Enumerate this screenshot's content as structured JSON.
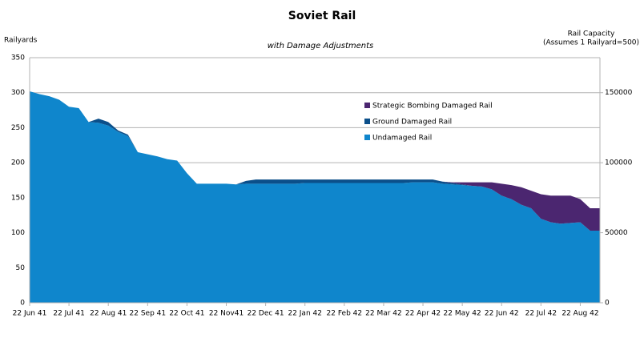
{
  "chart_data": {
    "type": "stacked_area",
    "title": "Soviet Rail",
    "subtitle": "with Damage Adjustments",
    "ylabel": "Railyards",
    "y2label": [
      "Rail Capacity",
      "(Assumes 1 Railyard=500)"
    ],
    "categories": [
      "22 Jun 41",
      null,
      null,
      null,
      "22 Jul 41",
      null,
      null,
      null,
      "22 Aug 41",
      null,
      null,
      null,
      "22 Sep 41",
      null,
      null,
      null,
      "22 Oct 41",
      null,
      null,
      null,
      "22 Nov41",
      null,
      null,
      null,
      "22 Dec 41",
      null,
      null,
      null,
      "22 Jan 42",
      null,
      null,
      null,
      "22 Feb 42",
      null,
      null,
      null,
      "22 Mar 42",
      null,
      null,
      null,
      "22 Apr 42",
      null,
      null,
      null,
      "22 May 42",
      null,
      null,
      null,
      "22 Jun 42",
      null,
      null,
      null,
      "22 Jul 42",
      null,
      null,
      null,
      "22 Aug 42",
      null,
      null
    ],
    "series": [
      {
        "name": "Undamaged Rail",
        "color": "#0f86cc",
        "values": [
          302,
          298,
          295,
          290,
          280,
          278,
          258,
          257,
          253,
          244,
          238,
          215,
          212,
          209,
          205,
          203,
          185,
          170,
          170,
          170,
          170,
          169,
          170,
          170,
          170,
          170,
          170,
          170,
          171,
          171,
          171,
          171,
          171,
          171,
          171,
          171,
          171,
          171,
          171,
          172,
          172,
          172,
          170,
          169,
          168,
          167,
          166,
          162,
          153,
          148,
          140,
          135,
          120,
          115,
          113,
          114,
          115,
          103,
          103
        ]
      },
      {
        "name": "Ground Damaged Rail",
        "color": "#0b4f8a",
        "values": [
          0,
          0,
          0,
          0,
          0,
          0,
          0,
          6,
          5,
          2,
          2,
          0,
          0,
          0,
          0,
          0,
          0,
          0,
          0,
          0,
          0,
          0,
          4,
          6,
          6,
          6,
          6,
          6,
          5,
          5,
          5,
          5,
          5,
          5,
          5,
          5,
          5,
          5,
          5,
          4,
          4,
          4,
          3,
          2,
          1,
          0,
          0,
          0,
          0,
          0,
          0,
          0,
          0,
          0,
          0,
          0,
          0,
          0,
          0
        ]
      },
      {
        "name": "Strategic Bombing Damaged Rail",
        "color": "#4b2670",
        "values": [
          0,
          0,
          0,
          0,
          0,
          0,
          0,
          0,
          0,
          0,
          0,
          0,
          0,
          0,
          0,
          0,
          0,
          0,
          0,
          0,
          0,
          0,
          0,
          0,
          0,
          0,
          0,
          0,
          0,
          0,
          0,
          0,
          0,
          0,
          0,
          0,
          0,
          0,
          0,
          0,
          0,
          0,
          0,
          1,
          3,
          5,
          6,
          10,
          17,
          20,
          25,
          25,
          35,
          38,
          40,
          39,
          33,
          32,
          32
        ]
      }
    ],
    "ylim": [
      0,
      350
    ],
    "yticks": [
      0,
      50,
      100,
      150,
      200,
      250,
      300,
      350
    ],
    "y2lim": [
      0,
      175000
    ],
    "y2ticks": [
      0,
      50000,
      100000,
      150000
    ],
    "grid": true
  }
}
